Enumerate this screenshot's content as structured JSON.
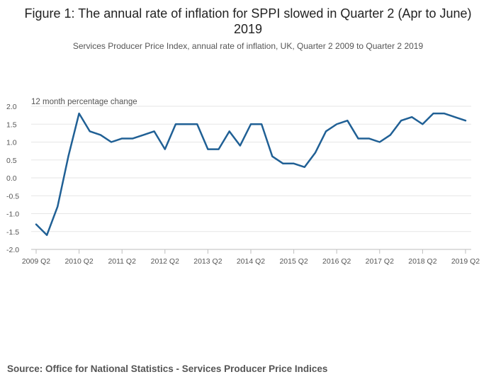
{
  "chart_data": {
    "type": "line",
    "title": "Figure 1: The annual rate of inflation for SPPI slowed in Quarter 2 (Apr to June) 2019",
    "subtitle": "Services Producer Price Index, annual rate of inflation, UK, Quarter 2 2009 to Quarter 2 2019",
    "ylabel": "12 month percentage change",
    "xlabel": "",
    "ylim": [
      -2.0,
      2.0
    ],
    "yticks": [
      "2.0",
      "1.5",
      "1.0",
      "0.5",
      "0.0",
      "-0.5",
      "-1.0",
      "-1.5",
      "-2.0"
    ],
    "ytick_values": [
      2.0,
      1.5,
      1.0,
      0.5,
      0.0,
      -0.5,
      -1.0,
      -1.5,
      -2.0
    ],
    "xtick_labels": [
      "2009 Q2",
      "2010 Q2",
      "2011 Q2",
      "2012 Q2",
      "2013 Q2",
      "2014 Q2",
      "2015 Q2",
      "2016 Q2",
      "2017 Q2",
      "2018 Q2",
      "2019 Q2"
    ],
    "grid": true,
    "series": [
      {
        "name": "SPPI annual rate",
        "color": "#206095",
        "values": [
          -1.3,
          -1.6,
          -0.8,
          0.6,
          1.8,
          1.3,
          1.2,
          1.0,
          1.1,
          1.1,
          1.2,
          1.3,
          0.8,
          1.5,
          1.5,
          1.5,
          0.8,
          0.8,
          1.3,
          0.9,
          1.5,
          1.5,
          0.6,
          0.4,
          0.4,
          0.3,
          0.7,
          1.3,
          1.5,
          1.6,
          1.1,
          1.1,
          1.0,
          1.2,
          1.6,
          1.7,
          1.5,
          1.8,
          1.8,
          1.7,
          1.6
        ]
      }
    ]
  },
  "source": "Source: Office for National Statistics - Services Producer Price Indices"
}
